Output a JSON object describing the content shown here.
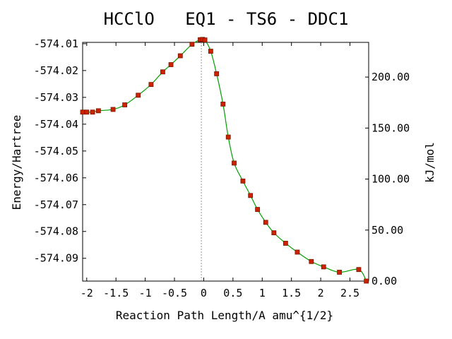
{
  "chart_data": {
    "type": "line",
    "title": "HCClO   EQ1 - TS6 - DDC1",
    "xlabel": "Reaction Path Length/A amu^{1/2}",
    "ylabel": "Energy/Hartree",
    "y2label": "kJ/mol",
    "xlim": [
      -2.07,
      2.82
    ],
    "ylim": [
      -574.0985,
      -574.0095
    ],
    "y2lim": [
      0.0,
      234.0
    ],
    "x_ticks": [
      -2,
      -1.5,
      -1,
      -0.5,
      0,
      0.5,
      1,
      1.5,
      2,
      2.5
    ],
    "x_tick_labels": [
      "-2",
      "-1.5",
      "-1",
      "-0.5",
      "0",
      "0.5",
      "1",
      "1.5",
      "2",
      "2.5"
    ],
    "y_ticks": [
      -574.01,
      -574.02,
      -574.03,
      -574.04,
      -574.05,
      -574.06,
      -574.07,
      -574.08,
      -574.09
    ],
    "y_tick_labels": [
      "-574.01",
      "-574.02",
      "-574.03",
      "-574.04",
      "-574.05",
      "-574.06",
      "-574.07",
      "-574.08",
      "-574.09"
    ],
    "y2_ticks": [
      0,
      50,
      100,
      150,
      200
    ],
    "y2_tick_labels": [
      "0.00",
      "50.00",
      "100.00",
      "150.00",
      "200.00"
    ],
    "ts_x": -0.04,
    "grid": false,
    "colors": {
      "line": "#00a000",
      "marker": "#cc2200",
      "marker_edge": "#7a1500",
      "ts_line": "#999999",
      "axis": "#000000"
    },
    "series": [
      {
        "x": [
          -2.07,
          -2.0,
          -1.9,
          -1.8,
          -1.55,
          -1.35,
          -1.12,
          -0.9,
          -0.7,
          -0.56,
          -0.4,
          -0.2,
          -0.06,
          -0.02,
          0.02,
          0.12,
          0.22,
          0.33,
          0.42,
          0.52,
          0.67,
          0.8,
          0.92,
          1.06,
          1.2,
          1.4,
          1.6,
          1.84,
          2.05,
          2.32,
          2.65,
          2.78
        ],
        "y": [
          -574.0355,
          -574.0355,
          -574.0355,
          -574.035,
          -574.0345,
          -574.0328,
          -574.0292,
          -574.0252,
          -574.0205,
          -574.0178,
          -574.0145,
          -574.0102,
          -574.0085,
          -574.0084,
          -574.0086,
          -574.0128,
          -574.0212,
          -574.0325,
          -574.0448,
          -574.0545,
          -574.0612,
          -574.0666,
          -574.0718,
          -574.0766,
          -574.0805,
          -574.0844,
          -574.0877,
          -574.0912,
          -574.0932,
          -574.0952,
          -574.0942,
          -574.0985
        ]
      }
    ]
  }
}
